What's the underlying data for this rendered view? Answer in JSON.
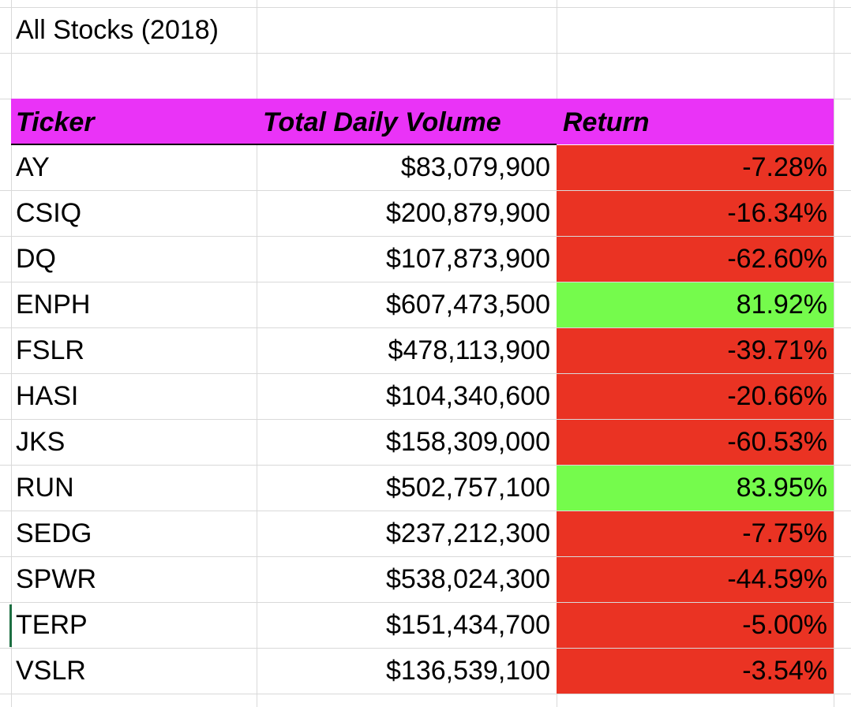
{
  "sheet": {
    "title": "All Stocks (2018)",
    "headers": {
      "ticker": "Ticker",
      "volume": "Total Daily Volume",
      "return": "Return"
    },
    "colors": {
      "header": "#ea33f7",
      "negative": "#ea3323",
      "positive": "#75fb4c"
    },
    "rows": [
      {
        "ticker": "AY",
        "volume": "$83,079,900",
        "return": "-7.28%",
        "sign": "negative"
      },
      {
        "ticker": "CSIQ",
        "volume": "$200,879,900",
        "return": "-16.34%",
        "sign": "negative"
      },
      {
        "ticker": "DQ",
        "volume": "$107,873,900",
        "return": "-62.60%",
        "sign": "negative"
      },
      {
        "ticker": "ENPH",
        "volume": "$607,473,500",
        "return": "81.92%",
        "sign": "positive"
      },
      {
        "ticker": "FSLR",
        "volume": "$478,113,900",
        "return": "-39.71%",
        "sign": "negative"
      },
      {
        "ticker": "HASI",
        "volume": "$104,340,600",
        "return": "-20.66%",
        "sign": "negative"
      },
      {
        "ticker": "JKS",
        "volume": "$158,309,000",
        "return": "-60.53%",
        "sign": "negative"
      },
      {
        "ticker": "RUN",
        "volume": "$502,757,100",
        "return": "83.95%",
        "sign": "positive"
      },
      {
        "ticker": "SEDG",
        "volume": "$237,212,300",
        "return": "-7.75%",
        "sign": "negative"
      },
      {
        "ticker": "SPWR",
        "volume": "$538,024,300",
        "return": "-44.59%",
        "sign": "negative"
      },
      {
        "ticker": "TERP",
        "volume": "$151,434,700",
        "return": "-5.00%",
        "sign": "negative"
      },
      {
        "ticker": "VSLR",
        "volume": "$136,539,100",
        "return": "-3.54%",
        "sign": "negative"
      }
    ]
  }
}
